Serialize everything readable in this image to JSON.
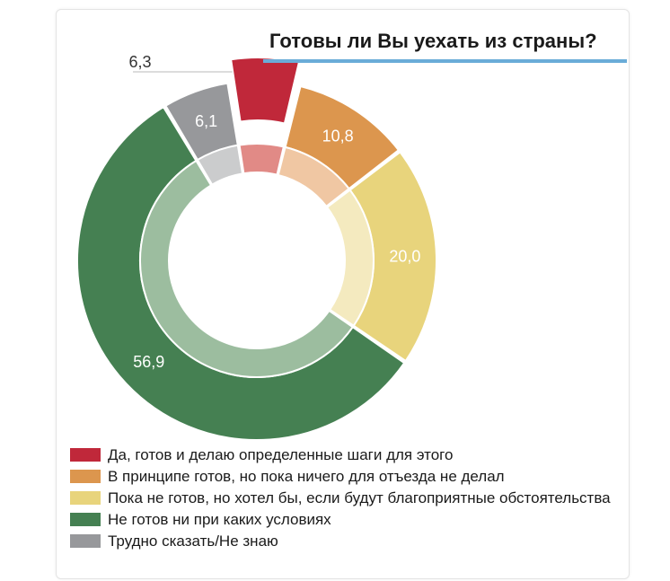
{
  "chart_data": {
    "type": "pie",
    "title": "Готовы ли Вы уехать из страны?",
    "slices": [
      {
        "label": "Да, готов и делаю определенные шаги для этого",
        "value": 6.3,
        "display": "6,3",
        "color": "#c0283a",
        "inner_color": "#e18a86",
        "exploded": true
      },
      {
        "label": "В принципе готов, но пока ничего для отъезда не делал",
        "value": 10.8,
        "display": "10,8",
        "color": "#dc964e",
        "inner_color": "#f0c7a3"
      },
      {
        "label": "Пока не готов, но хотел бы, если будут благоприятные обстоятельства",
        "value": 20.0,
        "display": "20,0",
        "color": "#e8d47c",
        "inner_color": "#f4eabf"
      },
      {
        "label": "Не готов ни при каких условиях",
        "value": 56.9,
        "display": "56,9",
        "color": "#458052",
        "inner_color": "#9cbd9f"
      },
      {
        "label": "Трудно сказать/Не знаю",
        "value": 6.1,
        "display": "6,1",
        "color": "#97989b",
        "inner_color": "#cbcccd"
      }
    ],
    "legend_placement": "bottom"
  }
}
